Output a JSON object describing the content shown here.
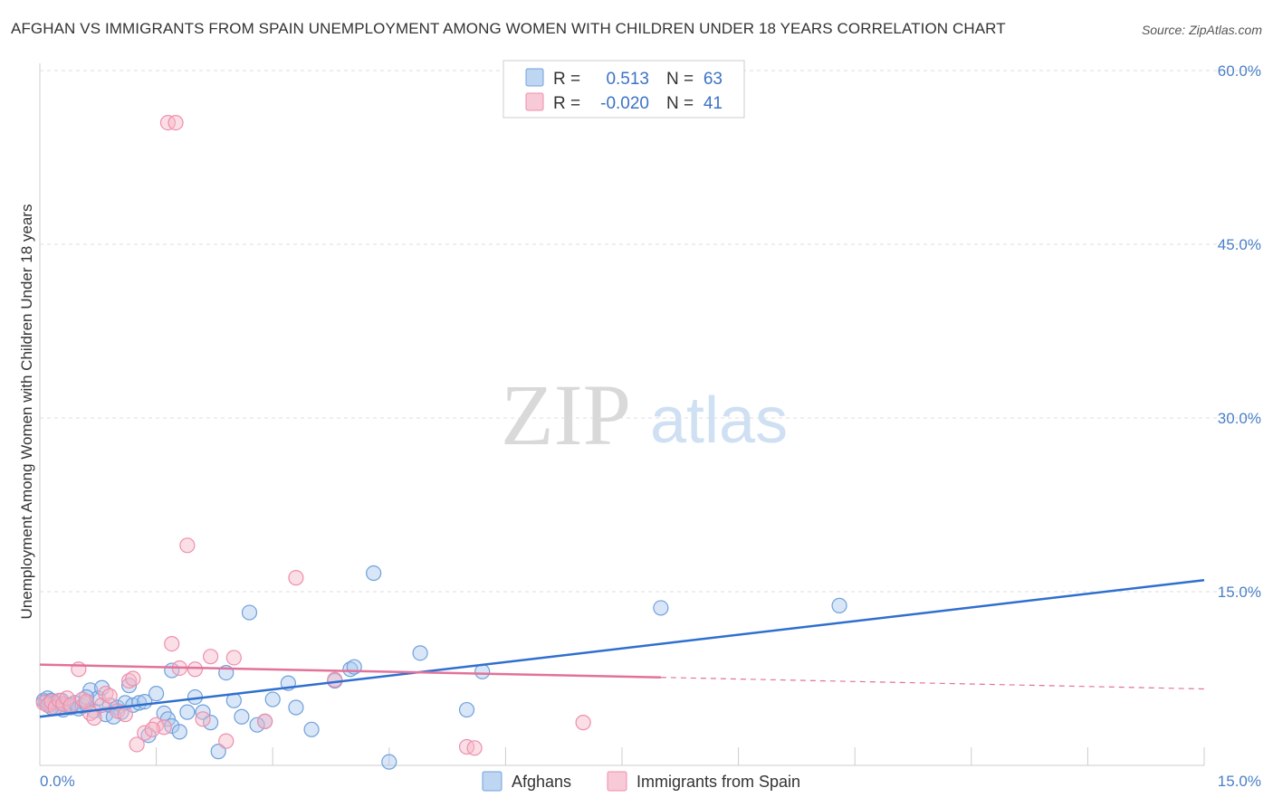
{
  "title": "AFGHAN VS IMMIGRANTS FROM SPAIN UNEMPLOYMENT AMONG WOMEN WITH CHILDREN UNDER 18 YEARS CORRELATION CHART",
  "source": "Source: ZipAtlas.com",
  "watermark": {
    "zip": "ZIP",
    "atlas": "atlas"
  },
  "colors": {
    "afghans_fill": "#a9c8ee",
    "afghans_stroke": "#6fa0dc",
    "afghans_line": "#2f6fcf",
    "spain_fill": "#f6b7c8",
    "spain_stroke": "#ee8fab",
    "spain_line": "#e2729a"
  },
  "legend": {
    "rows": [
      {
        "r_label": "R =",
        "r_value": "0.513",
        "n_label": "N =",
        "n_value": "63"
      },
      {
        "r_label": "R =",
        "r_value": "-0.020",
        "n_label": "N =",
        "n_value": "41"
      }
    ]
  },
  "bottom_legend": {
    "afghans": "Afghans",
    "spain": "Immigrants from Spain"
  },
  "chart_data": {
    "type": "scatter",
    "title": "AFGHAN VS IMMIGRANTS FROM SPAIN UNEMPLOYMENT AMONG WOMEN WITH CHILDREN UNDER 18 YEARS CORRELATION CHART",
    "xlabel": "",
    "ylabel": "Unemployment Among Women with Children Under 18 years",
    "xlim": [
      0,
      15
    ],
    "ylim": [
      0,
      60
    ],
    "x_tick_labels": [
      "0.0%",
      "15.0%"
    ],
    "y_ticks": [
      15,
      30,
      45,
      60
    ],
    "y_tick_labels": [
      "15.0%",
      "30.0%",
      "45.0%",
      "60.0%"
    ],
    "grid": true,
    "series": [
      {
        "name": "Afghans",
        "r": 0.513,
        "n": 63,
        "trend": {
          "x": [
            0,
            15
          ],
          "y": [
            4.2,
            16.0
          ]
        },
        "points": [
          {
            "x": 0.05,
            "y": 5.6
          },
          {
            "x": 0.08,
            "y": 5.5
          },
          {
            "x": 0.1,
            "y": 5.8
          },
          {
            "x": 0.12,
            "y": 5.3
          },
          {
            "x": 0.15,
            "y": 5.6
          },
          {
            "x": 0.2,
            "y": 5.4
          },
          {
            "x": 0.25,
            "y": 5.0
          },
          {
            "x": 0.28,
            "y": 5.6
          },
          {
            "x": 0.35,
            "y": 5.2
          },
          {
            "x": 0.4,
            "y": 5.0
          },
          {
            "x": 0.45,
            "y": 5.4
          },
          {
            "x": 0.5,
            "y": 4.9
          },
          {
            "x": 0.55,
            "y": 5.1
          },
          {
            "x": 0.6,
            "y": 5.3
          },
          {
            "x": 0.65,
            "y": 6.5
          },
          {
            "x": 0.7,
            "y": 4.7
          },
          {
            "x": 0.75,
            "y": 5.8
          },
          {
            "x": 0.8,
            "y": 6.7
          },
          {
            "x": 0.85,
            "y": 4.4
          },
          {
            "x": 0.9,
            "y": 5.2
          },
          {
            "x": 1.0,
            "y": 5.0
          },
          {
            "x": 1.05,
            "y": 4.6
          },
          {
            "x": 1.1,
            "y": 5.4
          },
          {
            "x": 1.15,
            "y": 6.9
          },
          {
            "x": 1.2,
            "y": 5.2
          },
          {
            "x": 1.28,
            "y": 5.4
          },
          {
            "x": 1.35,
            "y": 5.5
          },
          {
            "x": 1.5,
            "y": 6.2
          },
          {
            "x": 1.6,
            "y": 4.5
          },
          {
            "x": 1.65,
            "y": 4.0
          },
          {
            "x": 1.7,
            "y": 3.4
          },
          {
            "x": 1.8,
            "y": 2.9
          },
          {
            "x": 1.9,
            "y": 4.6
          },
          {
            "x": 2.0,
            "y": 5.9
          },
          {
            "x": 2.1,
            "y": 4.6
          },
          {
            "x": 2.2,
            "y": 3.7
          },
          {
            "x": 2.3,
            "y": 1.2
          },
          {
            "x": 2.4,
            "y": 8.0
          },
          {
            "x": 2.5,
            "y": 5.6
          },
          {
            "x": 2.6,
            "y": 4.2
          },
          {
            "x": 2.7,
            "y": 13.2
          },
          {
            "x": 2.9,
            "y": 3.8
          },
          {
            "x": 3.0,
            "y": 5.7
          },
          {
            "x": 3.2,
            "y": 7.1
          },
          {
            "x": 3.3,
            "y": 5.0
          },
          {
            "x": 3.5,
            "y": 3.1
          },
          {
            "x": 3.8,
            "y": 7.3
          },
          {
            "x": 4.0,
            "y": 8.3
          },
          {
            "x": 4.05,
            "y": 8.5
          },
          {
            "x": 4.3,
            "y": 16.6
          },
          {
            "x": 4.5,
            "y": 0.3
          },
          {
            "x": 4.9,
            "y": 9.7
          },
          {
            "x": 5.5,
            "y": 4.8
          },
          {
            "x": 5.7,
            "y": 8.1
          },
          {
            "x": 8.0,
            "y": 13.6
          },
          {
            "x": 10.3,
            "y": 13.8
          },
          {
            "x": 1.7,
            "y": 8.2
          },
          {
            "x": 0.3,
            "y": 4.8
          },
          {
            "x": 2.8,
            "y": 3.5
          },
          {
            "x": 0.95,
            "y": 4.2
          },
          {
            "x": 1.4,
            "y": 2.6
          },
          {
            "x": 0.6,
            "y": 5.9
          },
          {
            "x": 0.15,
            "y": 5.0
          }
        ]
      },
      {
        "name": "Immigrants from Spain",
        "r": -0.02,
        "n": 41,
        "trend": {
          "x": [
            0,
            8
          ],
          "y": [
            8.7,
            7.6
          ]
        },
        "trend_dashed": {
          "x": [
            8,
            15
          ],
          "y": [
            7.6,
            6.6
          ]
        },
        "points": [
          {
            "x": 0.05,
            "y": 5.4
          },
          {
            "x": 0.1,
            "y": 5.2
          },
          {
            "x": 0.15,
            "y": 5.5
          },
          {
            "x": 0.2,
            "y": 5.0
          },
          {
            "x": 0.25,
            "y": 5.6
          },
          {
            "x": 0.3,
            "y": 5.3
          },
          {
            "x": 0.35,
            "y": 5.8
          },
          {
            "x": 0.4,
            "y": 5.2
          },
          {
            "x": 0.5,
            "y": 8.3
          },
          {
            "x": 0.55,
            "y": 5.7
          },
          {
            "x": 0.6,
            "y": 5.5
          },
          {
            "x": 0.65,
            "y": 4.5
          },
          {
            "x": 0.7,
            "y": 4.1
          },
          {
            "x": 0.8,
            "y": 5.2
          },
          {
            "x": 0.85,
            "y": 6.2
          },
          {
            "x": 0.9,
            "y": 6.0
          },
          {
            "x": 1.0,
            "y": 4.7
          },
          {
            "x": 1.1,
            "y": 4.4
          },
          {
            "x": 1.15,
            "y": 7.3
          },
          {
            "x": 1.2,
            "y": 7.5
          },
          {
            "x": 1.25,
            "y": 1.8
          },
          {
            "x": 1.35,
            "y": 2.8
          },
          {
            "x": 1.5,
            "y": 3.5
          },
          {
            "x": 1.6,
            "y": 3.3
          },
          {
            "x": 1.65,
            "y": 55.5
          },
          {
            "x": 1.75,
            "y": 55.5
          },
          {
            "x": 1.7,
            "y": 10.5
          },
          {
            "x": 1.8,
            "y": 8.4
          },
          {
            "x": 1.9,
            "y": 19.0
          },
          {
            "x": 2.0,
            "y": 8.3
          },
          {
            "x": 2.1,
            "y": 4.0
          },
          {
            "x": 2.2,
            "y": 9.4
          },
          {
            "x": 2.4,
            "y": 2.1
          },
          {
            "x": 2.5,
            "y": 9.3
          },
          {
            "x": 2.9,
            "y": 3.8
          },
          {
            "x": 3.3,
            "y": 16.2
          },
          {
            "x": 3.8,
            "y": 7.4
          },
          {
            "x": 5.5,
            "y": 1.6
          },
          {
            "x": 5.6,
            "y": 1.5
          },
          {
            "x": 7.0,
            "y": 3.7
          },
          {
            "x": 1.45,
            "y": 3.1
          }
        ]
      }
    ]
  }
}
